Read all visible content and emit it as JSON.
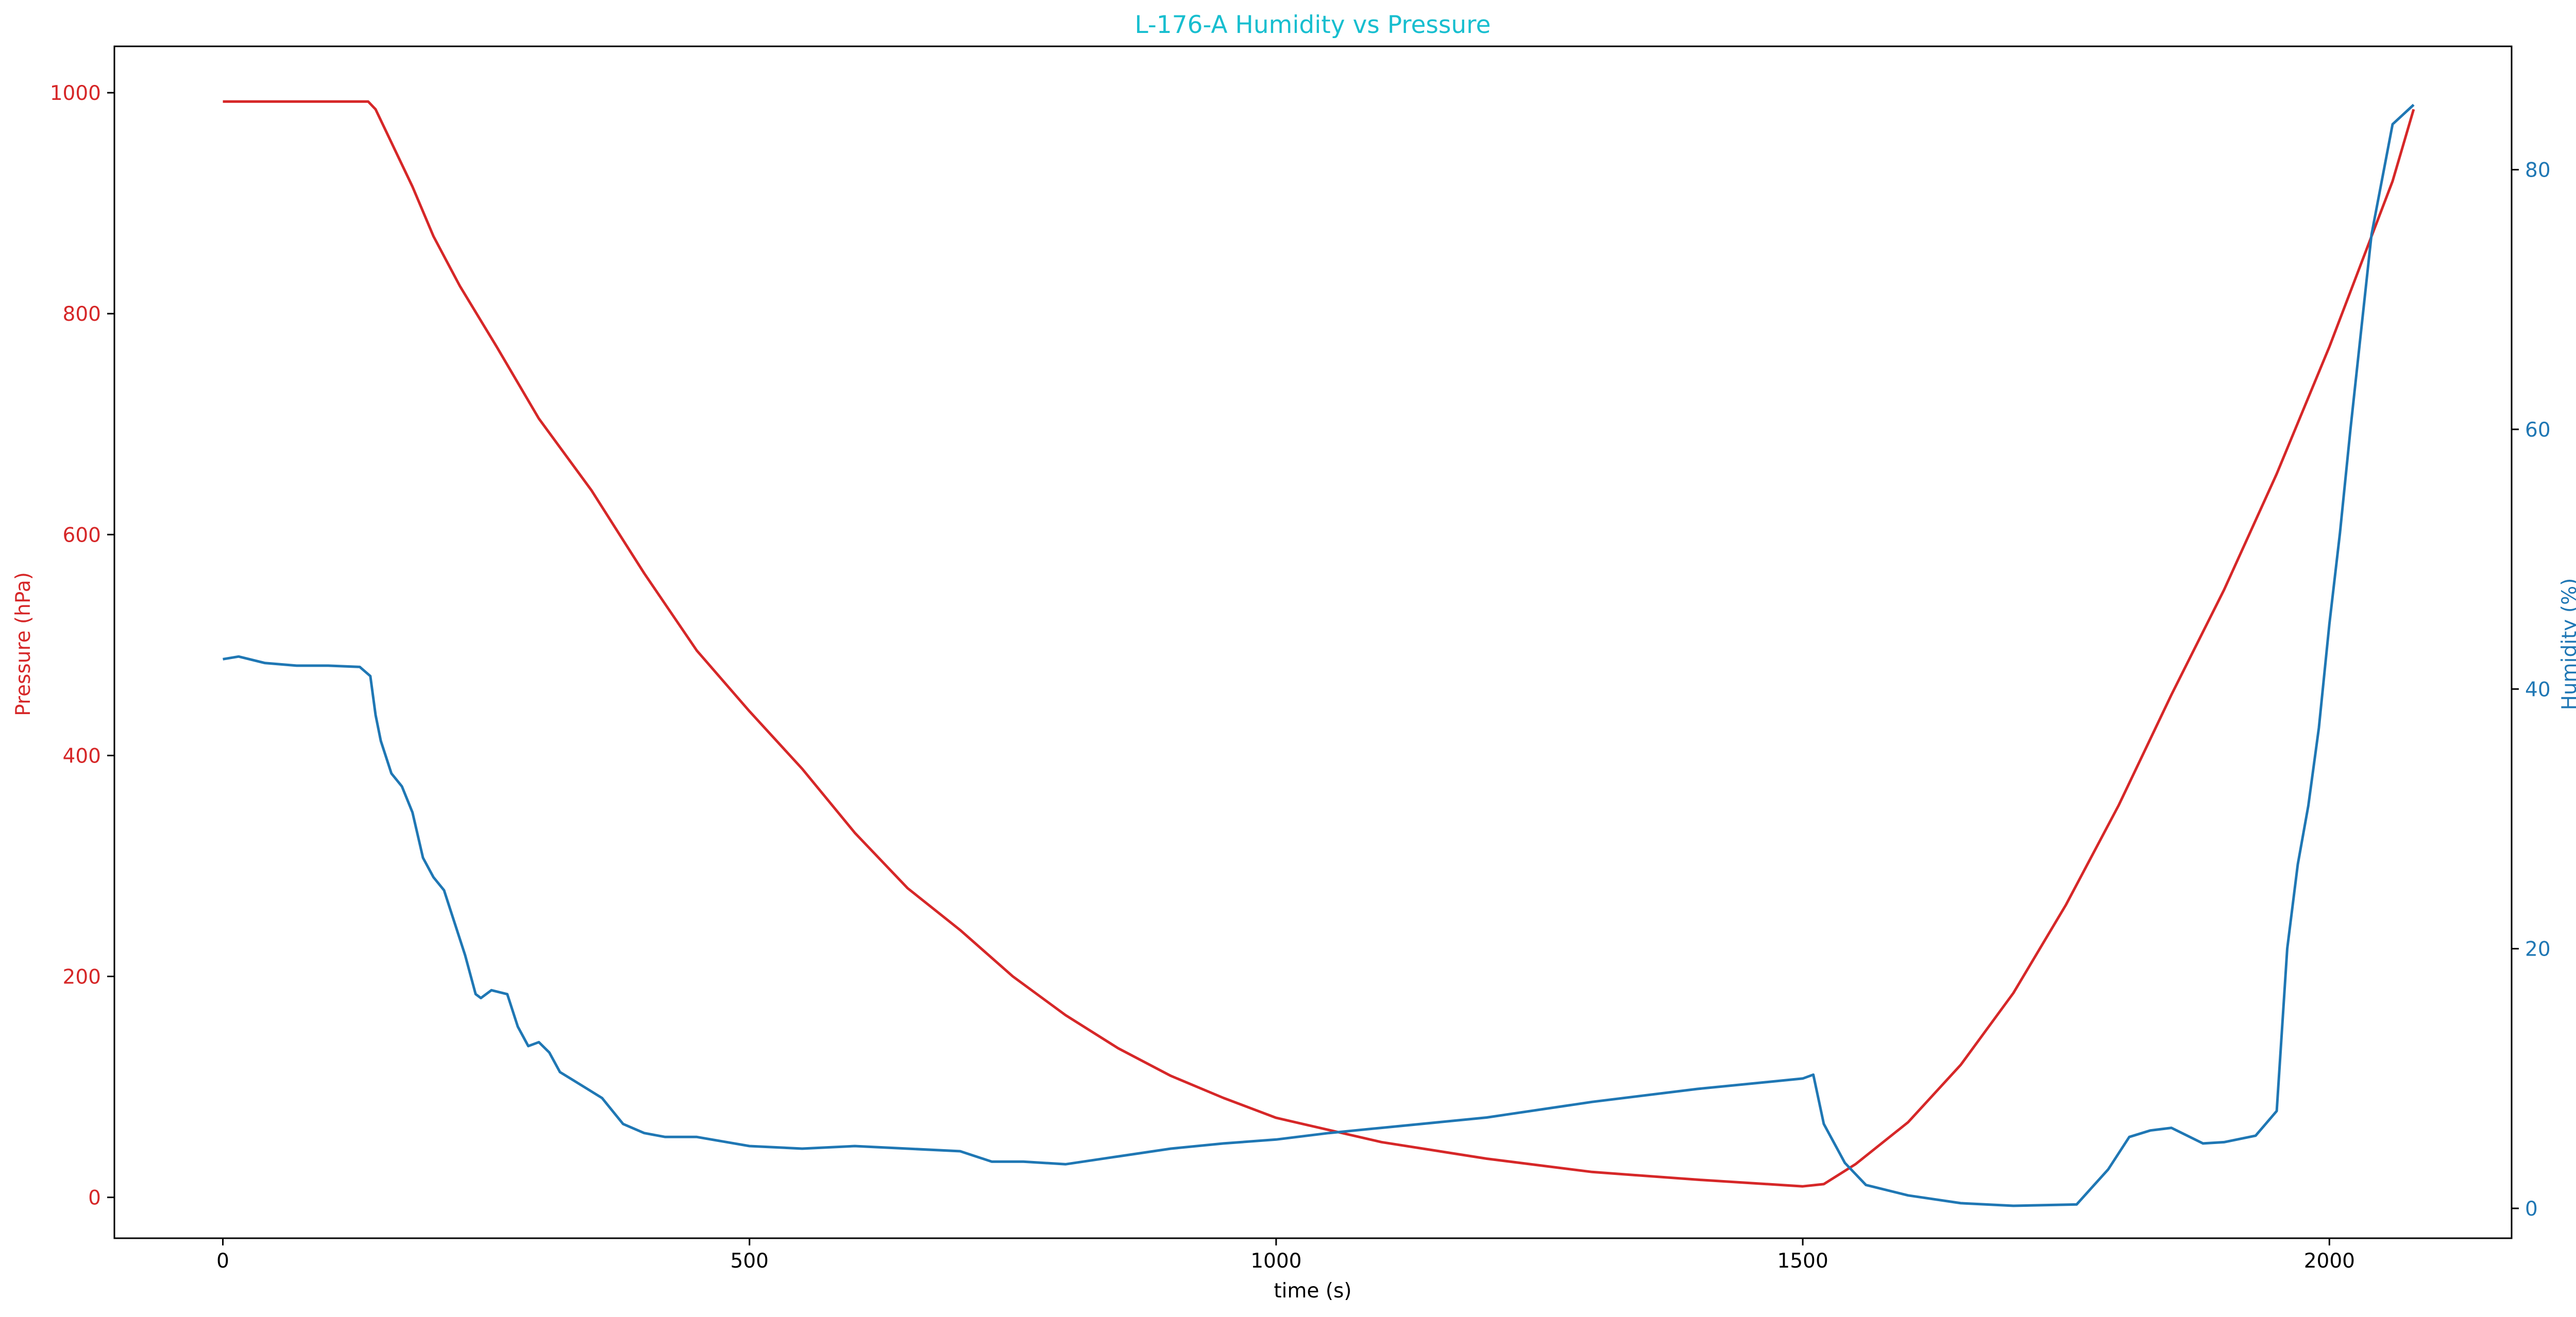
{
  "chart_data": {
    "type": "line",
    "title": "L-176-A Humidity vs Pressure",
    "xlabel": "time (s)",
    "ylabel_left": "Pressure (hPa)",
    "ylabel_right": "Humidity (%)",
    "xlim": [
      -103,
      2173
    ],
    "ylim_left": [
      -37,
      1042
    ],
    "ylim_right": [
      -2.3,
      89.5
    ],
    "x_ticks": [
      0,
      500,
      1000,
      1500,
      2000
    ],
    "y_left_ticks": [
      0,
      200,
      400,
      600,
      800,
      1000
    ],
    "y_right_ticks": [
      0,
      20,
      40,
      60,
      80
    ],
    "grid": false,
    "colors": {
      "title": "#17becf",
      "pressure": "#d62728",
      "humidity": "#1f77b4",
      "axis": "#000000"
    },
    "series": [
      {
        "name": "Pressure (hPa)",
        "axis": "left",
        "x": [
          0,
          50,
          100,
          138,
          145,
          160,
          180,
          200,
          225,
          260,
          300,
          350,
          400,
          450,
          500,
          550,
          600,
          650,
          700,
          750,
          800,
          850,
          900,
          950,
          1000,
          1100,
          1200,
          1300,
          1400,
          1500,
          1520,
          1550,
          1600,
          1650,
          1700,
          1750,
          1800,
          1850,
          1900,
          1950,
          2000,
          2040,
          2060,
          2080
        ],
        "values": [
          992,
          992,
          992,
          992,
          985,
          955,
          915,
          870,
          825,
          770,
          705,
          640,
          565,
          495,
          440,
          388,
          330,
          280,
          242,
          200,
          165,
          135,
          110,
          90,
          72,
          50,
          35,
          23,
          16,
          10,
          12,
          30,
          68,
          120,
          185,
          265,
          355,
          455,
          550,
          655,
          770,
          870,
          920,
          985
        ]
      },
      {
        "name": "Humidity (%)",
        "axis": "right",
        "x": [
          0,
          15,
          40,
          70,
          100,
          130,
          140,
          145,
          150,
          160,
          170,
          180,
          190,
          200,
          210,
          220,
          230,
          240,
          245,
          255,
          270,
          280,
          290,
          300,
          310,
          320,
          330,
          340,
          350,
          360,
          380,
          400,
          420,
          450,
          500,
          550,
          600,
          650,
          700,
          730,
          760,
          800,
          850,
          900,
          950,
          1000,
          1050,
          1100,
          1200,
          1300,
          1400,
          1500,
          1510,
          1520,
          1540,
          1560,
          1600,
          1650,
          1700,
          1760,
          1790,
          1810,
          1830,
          1850,
          1880,
          1900,
          1930,
          1950,
          1960,
          1970,
          1980,
          1990,
          2000,
          2010,
          2020,
          2040,
          2060,
          2080
        ],
        "values": [
          42.3,
          42.5,
          42.0,
          41.8,
          41.8,
          41.7,
          41.0,
          38.0,
          36.0,
          33.5,
          32.5,
          30.5,
          27.0,
          25.5,
          24.5,
          22.0,
          19.5,
          16.5,
          16.2,
          16.8,
          16.5,
          14.0,
          12.5,
          12.8,
          12.0,
          10.5,
          10.0,
          9.5,
          9.0,
          8.5,
          6.5,
          5.8,
          5.5,
          5.5,
          4.8,
          4.6,
          4.8,
          4.6,
          4.4,
          3.6,
          3.6,
          3.4,
          4.0,
          4.6,
          5.0,
          5.3,
          5.8,
          6.2,
          7.0,
          8.2,
          9.2,
          10.0,
          10.3,
          6.5,
          3.5,
          1.8,
          1.0,
          0.4,
          0.2,
          0.3,
          3.0,
          5.5,
          6.0,
          6.2,
          5.0,
          5.1,
          5.6,
          7.5,
          20.0,
          26.5,
          31.0,
          37.0,
          45.0,
          52.0,
          60.0,
          75.0,
          83.5,
          85.0
        ]
      }
    ]
  }
}
